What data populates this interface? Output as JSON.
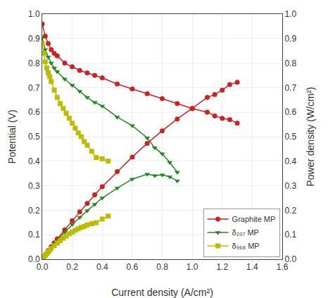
{
  "chart_data": {
    "type": "line",
    "x_label": "Current density (A/cm²)",
    "y_label": "Potential (V)",
    "y2_label": "Power density (W/cm²)",
    "xlim": [
      0,
      1.6
    ],
    "xticks": [
      {
        "value": 0,
        "label": "0.0"
      },
      0.2,
      0.4,
      0.6,
      0.8,
      {
        "value": 1,
        "label": "1.0"
      },
      1.2,
      1.4,
      1.6
    ],
    "ylim": [
      0,
      1
    ],
    "yticks": [
      {
        "value": 0,
        "label": "0.0"
      },
      0.1,
      0.2,
      0.3,
      0.4,
      0.5,
      0.6,
      0.7,
      0.8,
      0.9,
      {
        "value": 1,
        "label": "1.0"
      }
    ],
    "y2lim": [
      0,
      1
    ],
    "y2ticks": [
      {
        "value": 0,
        "label": "0.0"
      },
      0.1,
      0.2,
      0.3,
      0.4,
      0.5,
      0.6,
      0.7,
      0.8,
      0.9,
      {
        "value": 1,
        "label": "1.0"
      }
    ],
    "grid": true,
    "legend": "lower right",
    "series": [
      {
        "name": "Graphite MP",
        "color": "#cc2222",
        "marker": "circle",
        "x": [
          0.0,
          0.02,
          0.04,
          0.06,
          0.08,
          0.1,
          0.15,
          0.2,
          0.25,
          0.3,
          0.35,
          0.4,
          0.5,
          0.6,
          0.7,
          0.8,
          0.9,
          1.0,
          1.1,
          1.15,
          1.2,
          1.25,
          1.3
        ],
        "values": [
          0.96,
          0.91,
          0.88,
          0.855,
          0.84,
          0.83,
          0.8,
          0.785,
          0.77,
          0.76,
          0.75,
          0.74,
          0.715,
          0.695,
          0.675,
          0.655,
          0.635,
          0.615,
          0.6,
          0.585,
          0.575,
          0.57,
          0.555
        ]
      },
      {
        "name": "δ₂₀₇ MP",
        "color": "#228822",
        "marker": "triangle-down",
        "x": [
          0.0,
          0.02,
          0.04,
          0.06,
          0.08,
          0.1,
          0.15,
          0.2,
          0.25,
          0.3,
          0.35,
          0.4,
          0.5,
          0.6,
          0.7,
          0.75,
          0.8,
          0.85,
          0.9
        ],
        "values": [
          0.905,
          0.855,
          0.825,
          0.8,
          0.78,
          0.765,
          0.735,
          0.71,
          0.685,
          0.66,
          0.64,
          0.625,
          0.58,
          0.545,
          0.495,
          0.455,
          0.43,
          0.395,
          0.355
        ]
      },
      {
        "name": "δ₉₆₈ MP",
        "color": "#bbbb00",
        "marker": "square",
        "x": [
          0.0,
          0.01,
          0.02,
          0.03,
          0.04,
          0.05,
          0.06,
          0.08,
          0.1,
          0.12,
          0.14,
          0.16,
          0.18,
          0.2,
          0.22,
          0.24,
          0.26,
          0.28,
          0.3,
          0.33,
          0.36,
          0.4,
          0.44
        ],
        "values": [
          0.88,
          0.84,
          0.805,
          0.78,
          0.76,
          0.745,
          0.725,
          0.69,
          0.66,
          0.635,
          0.615,
          0.595,
          0.575,
          0.555,
          0.535,
          0.515,
          0.5,
          0.48,
          0.465,
          0.44,
          0.415,
          0.41,
          0.4
        ]
      },
      {
        "axis": "y2",
        "color": "#cc2222",
        "marker": "circle",
        "x": [
          0.0,
          0.02,
          0.04,
          0.06,
          0.08,
          0.1,
          0.15,
          0.2,
          0.25,
          0.3,
          0.35,
          0.4,
          0.5,
          0.6,
          0.7,
          0.8,
          0.9,
          1.0,
          1.1,
          1.15,
          1.2,
          1.25,
          1.3
        ],
        "values": [
          0.0,
          0.018,
          0.035,
          0.051,
          0.067,
          0.083,
          0.12,
          0.157,
          0.193,
          0.228,
          0.263,
          0.296,
          0.358,
          0.417,
          0.473,
          0.524,
          0.572,
          0.615,
          0.66,
          0.672,
          0.69,
          0.713,
          0.722
        ]
      },
      {
        "axis": "y2",
        "color": "#228822",
        "marker": "triangle-down",
        "x": [
          0.0,
          0.02,
          0.04,
          0.06,
          0.08,
          0.1,
          0.15,
          0.2,
          0.25,
          0.3,
          0.35,
          0.4,
          0.5,
          0.6,
          0.7,
          0.75,
          0.8,
          0.85,
          0.9
        ],
        "values": [
          0.0,
          0.017,
          0.033,
          0.048,
          0.062,
          0.077,
          0.11,
          0.142,
          0.171,
          0.198,
          0.224,
          0.25,
          0.29,
          0.327,
          0.347,
          0.341,
          0.344,
          0.336,
          0.32
        ]
      },
      {
        "axis": "y2",
        "color": "#bbbb00",
        "marker": "square",
        "x": [
          0.0,
          0.01,
          0.02,
          0.03,
          0.04,
          0.05,
          0.06,
          0.08,
          0.1,
          0.12,
          0.14,
          0.16,
          0.18,
          0.2,
          0.22,
          0.24,
          0.26,
          0.28,
          0.3,
          0.33,
          0.36,
          0.4,
          0.44
        ],
        "values": [
          0.0,
          0.008,
          0.016,
          0.023,
          0.03,
          0.037,
          0.044,
          0.055,
          0.066,
          0.076,
          0.086,
          0.095,
          0.104,
          0.111,
          0.118,
          0.124,
          0.13,
          0.134,
          0.14,
          0.145,
          0.149,
          0.164,
          0.176
        ]
      }
    ]
  }
}
